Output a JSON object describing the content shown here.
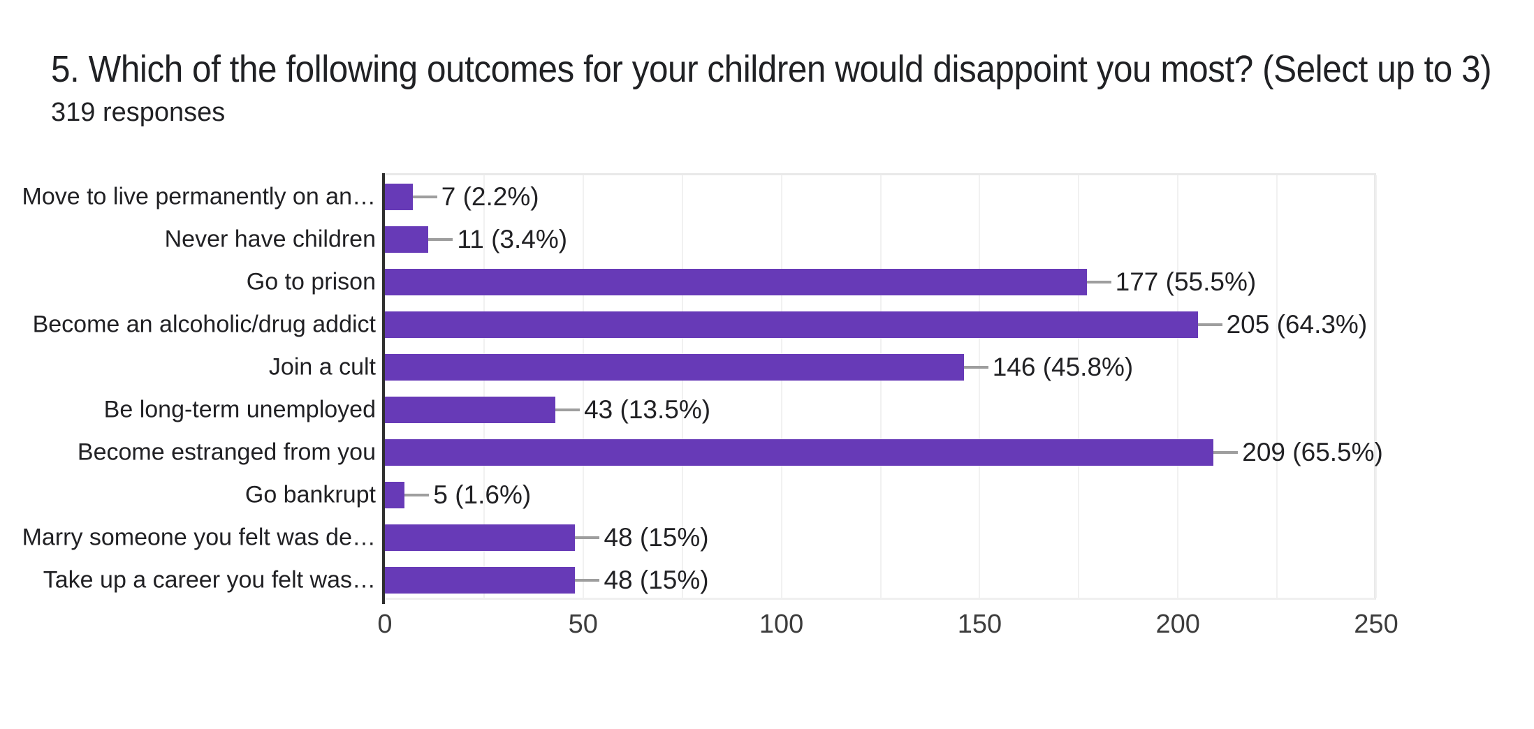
{
  "header": {
    "title": "5. Which of the following outcomes for your children would disappoint you most? (Select up to 3)",
    "responses": "319 responses"
  },
  "chart_data": {
    "type": "bar",
    "orientation": "horizontal",
    "title": "5. Which of the following outcomes for your children would disappoint you most? (Select up to 3)",
    "subtitle": "319 responses",
    "categories": [
      "Move to live permanently on an…",
      "Never have children",
      "Go to prison",
      "Become an alcoholic/drug addict",
      "Join a cult",
      "Be long-term unemployed",
      "Become estranged from you",
      "Go bankrupt",
      "Marry someone you felt was de…",
      "Take up a career you felt was…"
    ],
    "values": [
      7,
      11,
      177,
      205,
      146,
      43,
      209,
      5,
      48,
      48
    ],
    "value_labels": [
      "7 (2.2%)",
      "11 (3.4%)",
      "177 (55.5%)",
      "205 (64.3%)",
      "146 (45.8%)",
      "43 (13.5%)",
      "209 (65.5%)",
      "5 (1.6%)",
      "48 (15%)",
      "48 (15%)"
    ],
    "xticks": [
      0,
      50,
      100,
      150,
      200,
      250
    ],
    "xlim": [
      0,
      250
    ],
    "grid": true,
    "grid_interval": 25,
    "xlabel": "",
    "ylabel": "",
    "legend": "none",
    "bar_color": "#673ab7",
    "axis_color": "#2e2e2e",
    "leader_line_color": "#9e9e9e"
  }
}
